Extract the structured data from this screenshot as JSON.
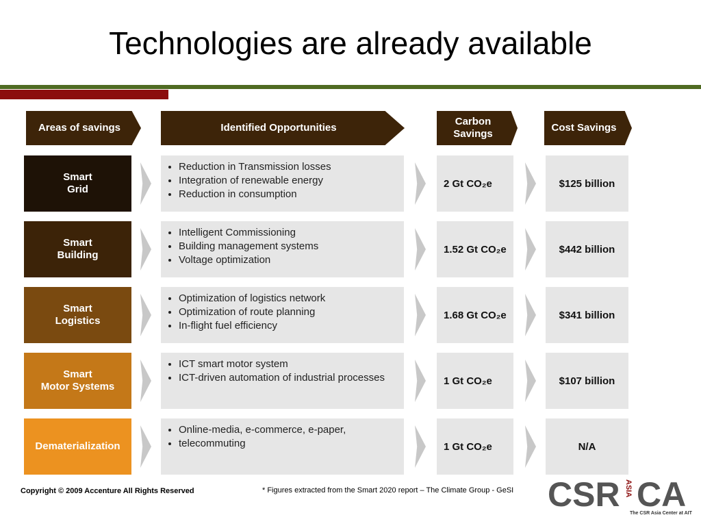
{
  "title": "Technologies are already available",
  "headers": [
    "Areas of savings",
    "Identified Opportunities",
    "Carbon Savings",
    "Cost Savings"
  ],
  "rows": [
    {
      "area": "Smart\nGrid",
      "opportunities": [
        "Reduction in Transmission losses",
        "Integration of renewable energy",
        "Reduction in consumption"
      ],
      "carbon": "2 Gt CO₂e",
      "cost": "$125 billion"
    },
    {
      "area": "Smart\nBuilding",
      "opportunities": [
        "Intelligent Commissioning",
        "Building management systems",
        "Voltage optimization"
      ],
      "carbon": "1.52 Gt CO₂e",
      "cost": "$442 billion"
    },
    {
      "area": "Smart\nLogistics",
      "opportunities": [
        "Optimization of logistics network",
        "Optimization of route planning",
        "In-flight fuel efficiency"
      ],
      "carbon": "1.68 Gt CO₂e",
      "cost": "$341 billion"
    },
    {
      "area": "Smart\nMotor Systems",
      "opportunities": [
        "ICT smart motor system",
        "ICT-driven automation of industrial processes"
      ],
      "carbon": "1 Gt CO₂e",
      "cost": "$107 billion"
    },
    {
      "area": "Dematerialization",
      "opportunities": [
        "Online-media, e-commerce, e-paper,",
        "telecommuting"
      ],
      "carbon": "1 Gt CO₂e",
      "cost": "N/A"
    }
  ],
  "footer": {
    "copyright": "Copyright © 2009 Accenture All Rights Reserved",
    "note": "* Figures extracted from the Smart 2020 report – The Climate Group - GeSI"
  },
  "logo": {
    "left": "CSR",
    "middle": "ASIA",
    "right": "CA",
    "caption": "The CSR Asia Center at AIT"
  }
}
